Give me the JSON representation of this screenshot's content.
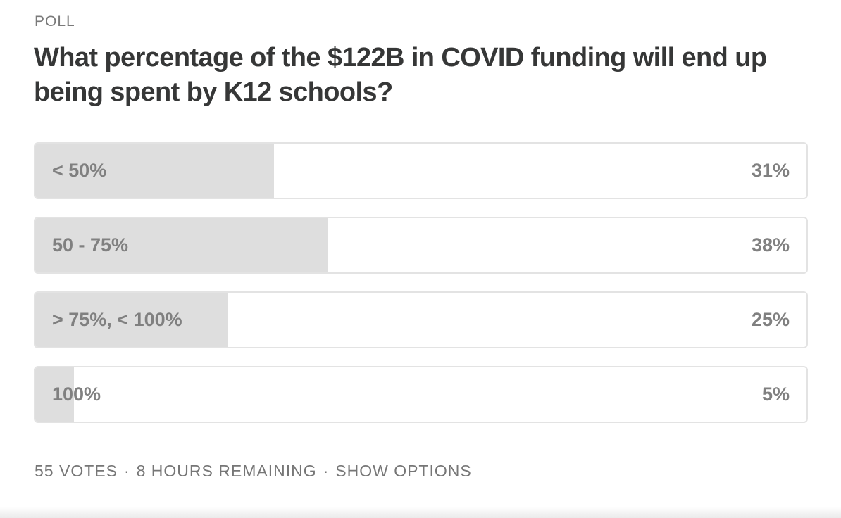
{
  "poll": {
    "label": "POLL",
    "question": "What percentage of the $122B in COVID funding will end up being spent by K12 schools?",
    "options": [
      {
        "label": "< 50%",
        "percent_text": "31%",
        "fill": 0.31
      },
      {
        "label": "50 - 75%",
        "percent_text": "38%",
        "fill": 0.38
      },
      {
        "label": "> 75%, < 100%",
        "percent_text": "25%",
        "fill": 0.25
      },
      {
        "label": "100%",
        "percent_text": "5%",
        "fill": 0.05
      }
    ],
    "footer": {
      "votes": "55 VOTES",
      "remaining": "8 HOURS REMAINING",
      "show_options": "SHOW OPTIONS",
      "separator": "·"
    }
  },
  "colors": {
    "fill": "#dedede",
    "border": "#e3e3e3",
    "question_text": "#363737",
    "muted_text": "#808080"
  }
}
